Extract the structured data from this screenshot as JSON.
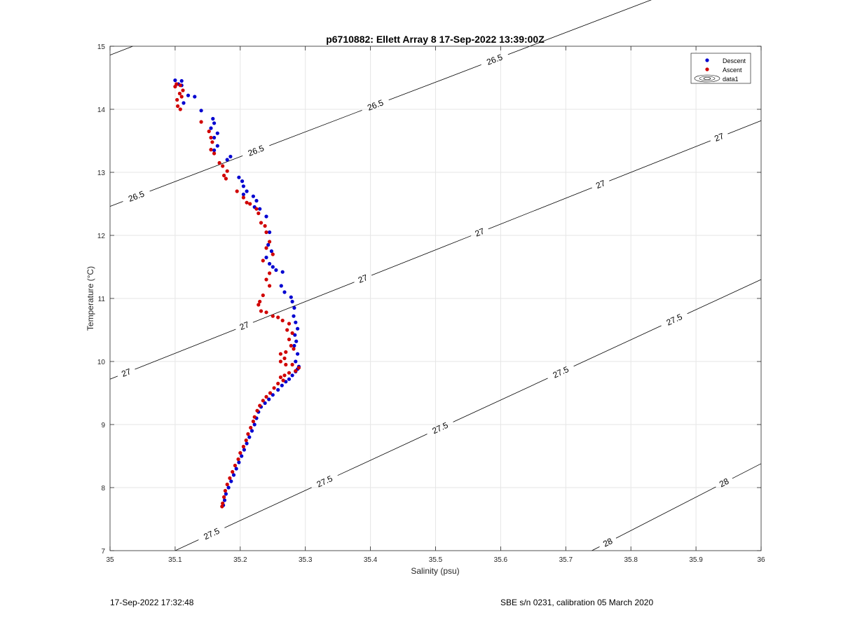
{
  "chart_data": {
    "type": "scatter",
    "title": "p6710882: Ellett Array 8 17-Sep-2022 13:39:00Z",
    "xlabel": "Salinity (psu)",
    "ylabel": "Temperature (°C)",
    "xlim": [
      35,
      36
    ],
    "ylim": [
      7,
      15
    ],
    "xticks": [
      "35",
      "35.1",
      "35.2",
      "35.3",
      "35.4",
      "35.5",
      "35.6",
      "35.7",
      "35.8",
      "35.9",
      "36"
    ],
    "yticks": [
      "7",
      "8",
      "9",
      "10",
      "11",
      "12",
      "13",
      "14",
      "15"
    ],
    "grid": true,
    "legend_position": "top-right",
    "legend": [
      "Descent",
      "Ascent",
      "data1"
    ],
    "contours": [
      {
        "level": "26.5",
        "points": [
          [
            35.0,
            12.46
          ],
          [
            36.0,
            16.4
          ]
        ],
        "labels": [
          [
            35.04,
            12.63
          ],
          [
            35.225,
            13.32
          ],
          [
            35.41,
            14.0
          ],
          [
            35.595,
            14.67
          ]
        ]
      },
      {
        "level": "26.5",
        "points": [
          [
            35.0,
            14.86
          ],
          [
            35.035,
            15.0
          ]
        ],
        "labels": []
      },
      {
        "level": "27",
        "points": [
          [
            35.0,
            9.72
          ],
          [
            36.0,
            13.82
          ]
        ],
        "labels": [
          [
            35.025,
            9.82
          ],
          [
            35.205,
            10.6
          ],
          [
            35.385,
            11.4
          ],
          [
            35.565,
            12.12
          ],
          [
            35.75,
            12.9
          ],
          [
            35.935,
            13.57
          ]
        ]
      },
      {
        "level": "27.5",
        "points": [
          [
            35.1,
            7.0
          ],
          [
            36.0,
            11.3
          ]
        ],
        "labels": [
          [
            35.15,
            7.4
          ],
          [
            35.325,
            8.2
          ],
          [
            35.505,
            8.99
          ],
          [
            35.69,
            9.88
          ],
          [
            35.865,
            10.7
          ]
        ]
      },
      {
        "level": "28",
        "points": [
          [
            35.74,
            7.0
          ],
          [
            36.0,
            8.38
          ]
        ],
        "labels": [
          [
            35.765,
            7.12
          ],
          [
            35.945,
            8.04
          ]
        ]
      }
    ],
    "series": [
      {
        "name": "Descent",
        "color": "#0000d0",
        "points": [
          [
            35.1,
            14.46
          ],
          [
            35.11,
            14.45
          ],
          [
            35.105,
            14.4
          ],
          [
            35.11,
            14.38
          ],
          [
            35.12,
            14.22
          ],
          [
            35.13,
            14.2
          ],
          [
            35.113,
            14.1
          ],
          [
            35.14,
            13.98
          ],
          [
            35.158,
            13.85
          ],
          [
            35.16,
            13.78
          ],
          [
            35.155,
            13.7
          ],
          [
            35.165,
            13.62
          ],
          [
            35.16,
            13.55
          ],
          [
            35.165,
            13.42
          ],
          [
            35.16,
            13.35
          ],
          [
            35.185,
            13.25
          ],
          [
            35.18,
            13.2
          ],
          [
            35.198,
            12.92
          ],
          [
            35.203,
            12.86
          ],
          [
            35.205,
            12.78
          ],
          [
            35.21,
            12.7
          ],
          [
            35.205,
            12.65
          ],
          [
            35.22,
            12.62
          ],
          [
            35.225,
            12.55
          ],
          [
            35.222,
            12.45
          ],
          [
            35.23,
            12.42
          ],
          [
            35.24,
            12.3
          ],
          [
            35.245,
            12.05
          ],
          [
            35.243,
            11.85
          ],
          [
            35.248,
            11.75
          ],
          [
            35.24,
            11.65
          ],
          [
            35.245,
            11.55
          ],
          [
            35.25,
            11.5
          ],
          [
            35.255,
            11.45
          ],
          [
            35.265,
            11.42
          ],
          [
            35.263,
            11.2
          ],
          [
            35.268,
            11.1
          ],
          [
            35.278,
            11.02
          ],
          [
            35.28,
            10.95
          ],
          [
            35.283,
            10.85
          ],
          [
            35.282,
            10.72
          ],
          [
            35.285,
            10.62
          ],
          [
            35.288,
            10.52
          ],
          [
            35.284,
            10.42
          ],
          [
            35.286,
            10.32
          ],
          [
            35.283,
            10.25
          ],
          [
            35.288,
            10.12
          ],
          [
            35.285,
            10.0
          ],
          [
            35.29,
            9.92
          ],
          [
            35.288,
            9.88
          ],
          [
            35.285,
            9.84
          ],
          [
            35.28,
            9.78
          ],
          [
            35.275,
            9.72
          ],
          [
            35.27,
            9.68
          ],
          [
            35.264,
            9.62
          ],
          [
            35.258,
            9.55
          ],
          [
            35.25,
            9.47
          ],
          [
            35.244,
            9.4
          ],
          [
            35.238,
            9.34
          ],
          [
            35.232,
            9.28
          ],
          [
            35.228,
            9.2
          ],
          [
            35.225,
            9.1
          ],
          [
            35.222,
            9.0
          ],
          [
            35.218,
            8.9
          ],
          [
            35.214,
            8.8
          ],
          [
            35.21,
            8.7
          ],
          [
            35.206,
            8.6
          ],
          [
            35.202,
            8.5
          ],
          [
            35.198,
            8.4
          ],
          [
            35.194,
            8.3
          ],
          [
            35.19,
            8.2
          ],
          [
            35.186,
            8.1
          ],
          [
            35.182,
            8.0
          ],
          [
            35.178,
            7.9
          ],
          [
            35.176,
            7.8
          ],
          [
            35.174,
            7.72
          ]
        ]
      },
      {
        "name": "Ascent",
        "color": "#d00000",
        "points": [
          [
            35.102,
            14.4
          ],
          [
            35.1,
            14.36
          ],
          [
            35.108,
            14.38
          ],
          [
            35.112,
            14.3
          ],
          [
            35.107,
            14.25
          ],
          [
            35.11,
            14.2
          ],
          [
            35.103,
            14.15
          ],
          [
            35.104,
            14.05
          ],
          [
            35.108,
            14.0
          ],
          [
            35.14,
            13.8
          ],
          [
            35.152,
            13.65
          ],
          [
            35.155,
            13.55
          ],
          [
            35.157,
            13.48
          ],
          [
            35.155,
            13.36
          ],
          [
            35.16,
            13.3
          ],
          [
            35.168,
            13.15
          ],
          [
            35.173,
            13.1
          ],
          [
            35.18,
            13.02
          ],
          [
            35.175,
            12.95
          ],
          [
            35.178,
            12.9
          ],
          [
            35.195,
            12.7
          ],
          [
            35.205,
            12.6
          ],
          [
            35.21,
            12.52
          ],
          [
            35.215,
            12.5
          ],
          [
            35.225,
            12.42
          ],
          [
            35.228,
            12.35
          ],
          [
            35.232,
            12.2
          ],
          [
            35.238,
            12.15
          ],
          [
            35.24,
            12.05
          ],
          [
            35.245,
            11.9
          ],
          [
            35.24,
            11.8
          ],
          [
            35.25,
            11.7
          ],
          [
            35.235,
            11.6
          ],
          [
            35.245,
            11.4
          ],
          [
            35.24,
            11.3
          ],
          [
            35.245,
            11.2
          ],
          [
            35.235,
            11.05
          ],
          [
            35.23,
            10.95
          ],
          [
            35.228,
            10.9
          ],
          [
            35.232,
            10.8
          ],
          [
            35.24,
            10.78
          ],
          [
            35.25,
            10.72
          ],
          [
            35.258,
            10.7
          ],
          [
            35.265,
            10.65
          ],
          [
            35.275,
            10.6
          ],
          [
            35.272,
            10.5
          ],
          [
            35.28,
            10.45
          ],
          [
            35.275,
            10.35
          ],
          [
            35.278,
            10.25
          ],
          [
            35.282,
            10.2
          ],
          [
            35.27,
            10.15
          ],
          [
            35.262,
            10.12
          ],
          [
            35.268,
            10.05
          ],
          [
            35.262,
            10.0
          ],
          [
            35.27,
            9.95
          ],
          [
            35.28,
            9.95
          ],
          [
            35.29,
            9.9
          ],
          [
            35.285,
            9.85
          ],
          [
            35.275,
            9.82
          ],
          [
            35.268,
            9.78
          ],
          [
            35.262,
            9.75
          ],
          [
            35.266,
            9.7
          ],
          [
            35.258,
            9.65
          ],
          [
            35.252,
            9.58
          ],
          [
            35.246,
            9.5
          ],
          [
            35.24,
            9.44
          ],
          [
            35.235,
            9.38
          ],
          [
            35.23,
            9.3
          ],
          [
            35.226,
            9.22
          ],
          [
            35.222,
            9.12
          ],
          [
            35.22,
            9.05
          ],
          [
            35.216,
            8.95
          ],
          [
            35.212,
            8.85
          ],
          [
            35.209,
            8.75
          ],
          [
            35.205,
            8.65
          ],
          [
            35.2,
            8.55
          ],
          [
            35.197,
            8.45
          ],
          [
            35.192,
            8.35
          ],
          [
            35.188,
            8.25
          ],
          [
            35.184,
            8.15
          ],
          [
            35.18,
            8.05
          ],
          [
            35.177,
            7.95
          ],
          [
            35.175,
            7.85
          ],
          [
            35.173,
            7.75
          ],
          [
            35.172,
            7.7
          ]
        ]
      }
    ]
  },
  "footer": {
    "left": "17-Sep-2022 17:32:48",
    "right": "SBE s/n 0231, calibration 05 March 2020"
  }
}
